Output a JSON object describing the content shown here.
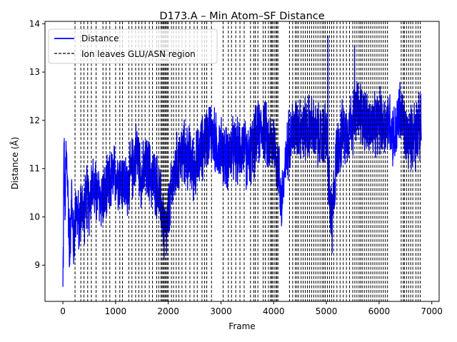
{
  "chart_data": {
    "type": "line",
    "title": "D173.A – Min Atom–SF Distance",
    "xlabel": "Frame",
    "ylabel": "Distance (Å)",
    "xlim": [
      -340,
      7140
    ],
    "ylim": [
      8.25,
      14.05
    ],
    "xticks": [
      0,
      1000,
      2000,
      3000,
      4000,
      5000,
      6000,
      7000
    ],
    "yticks": [
      9,
      10,
      11,
      12,
      13,
      14
    ],
    "grid": false,
    "legend_position": "upper left",
    "series": [
      {
        "name": "Distance",
        "color": "#0000ff",
        "style": "solid",
        "anchors": [
          [
            0,
            8.55
          ],
          [
            10,
            9.6
          ],
          [
            20,
            11.5
          ],
          [
            40,
            10.0
          ],
          [
            60,
            11.3
          ],
          [
            80,
            11.0
          ],
          [
            100,
            10.3
          ],
          [
            130,
            9.3
          ],
          [
            160,
            10.5
          ],
          [
            200,
            9.4
          ],
          [
            250,
            10.3
          ],
          [
            300,
            9.8
          ],
          [
            350,
            10.2
          ],
          [
            400,
            10.1
          ],
          [
            450,
            10.4
          ],
          [
            500,
            10.3
          ],
          [
            550,
            10.7
          ],
          [
            600,
            10.5
          ],
          [
            700,
            10.4
          ],
          [
            800,
            10.4
          ],
          [
            900,
            10.7
          ],
          [
            1000,
            10.9
          ],
          [
            1100,
            10.8
          ],
          [
            1200,
            10.6
          ],
          [
            1300,
            10.9
          ],
          [
            1400,
            11.4
          ],
          [
            1500,
            10.8
          ],
          [
            1600,
            11.0
          ],
          [
            1700,
            10.8
          ],
          [
            1800,
            10.6
          ],
          [
            1900,
            10.0
          ],
          [
            1950,
            9.6
          ],
          [
            2000,
            10.0
          ],
          [
            2100,
            10.8
          ],
          [
            2200,
            11.2
          ],
          [
            2300,
            11.3
          ],
          [
            2400,
            11.2
          ],
          [
            2500,
            11.0
          ],
          [
            2600,
            11.3
          ],
          [
            2700,
            11.6
          ],
          [
            2800,
            11.8
          ],
          [
            2900,
            11.5
          ],
          [
            3000,
            11.4
          ],
          [
            3100,
            11.2
          ],
          [
            3200,
            11.4
          ],
          [
            3300,
            11.3
          ],
          [
            3400,
            11.5
          ],
          [
            3500,
            11.2
          ],
          [
            3600,
            11.4
          ],
          [
            3700,
            11.7
          ],
          [
            3800,
            11.9
          ],
          [
            3900,
            11.5
          ],
          [
            4000,
            11.6
          ],
          [
            4100,
            10.9
          ],
          [
            4150,
            10.3
          ],
          [
            4200,
            10.8
          ],
          [
            4300,
            11.7
          ],
          [
            4400,
            11.8
          ],
          [
            4500,
            11.9
          ],
          [
            4600,
            11.8
          ],
          [
            4700,
            11.9
          ],
          [
            4800,
            11.7
          ],
          [
            4900,
            11.6
          ],
          [
            5000,
            11.8
          ],
          [
            5050,
            10.6
          ],
          [
            5100,
            9.8
          ],
          [
            5150,
            10.6
          ],
          [
            5200,
            11.4
          ],
          [
            5300,
            11.7
          ],
          [
            5400,
            11.8
          ],
          [
            5500,
            12.0
          ],
          [
            5600,
            12.2
          ],
          [
            5700,
            12.1
          ],
          [
            5800,
            11.9
          ],
          [
            5900,
            11.8
          ],
          [
            6000,
            12.0
          ],
          [
            6100,
            11.9
          ],
          [
            6200,
            12.0
          ],
          [
            6300,
            11.6
          ],
          [
            6400,
            12.2
          ],
          [
            6500,
            11.7
          ],
          [
            6600,
            11.6
          ],
          [
            6700,
            11.9
          ],
          [
            6800,
            11.8
          ]
        ],
        "noise_amplitude": 0.8,
        "extremes": [
          [
            5030,
            13.75
          ],
          [
            5535,
            13.55
          ],
          [
            5110,
            9.25
          ],
          [
            1920,
            9.15
          ],
          [
            0,
            8.55
          ],
          [
            6690,
            10.95
          ]
        ]
      },
      {
        "name": "Ion leaves GLU/ASN region",
        "color": "#000000",
        "style": "dashed",
        "x": [
          230,
          340,
          400,
          470,
          540,
          630,
          760,
          820,
          890,
          1000,
          1080,
          1130,
          1250,
          1310,
          1380,
          1440,
          1500,
          1560,
          1640,
          1700,
          1780,
          1820,
          1860,
          1880,
          1900,
          1920,
          1940,
          1960,
          1980,
          2000,
          2060,
          2100,
          2150,
          2200,
          2260,
          2330,
          2410,
          2490,
          2550,
          2640,
          2690,
          2730,
          2820,
          3040,
          3140,
          3200,
          3280,
          3360,
          3440,
          3560,
          3620,
          3650,
          3700,
          3800,
          3840,
          3900,
          3940,
          3960,
          3980,
          4010,
          4040,
          4060,
          4080,
          4300,
          4360,
          4410,
          4440,
          4470,
          4520,
          4560,
          4600,
          4640,
          4680,
          4720,
          4760,
          4800,
          4840,
          4880,
          4920,
          4950,
          4980,
          5020,
          5060,
          5100,
          5140,
          5200,
          5260,
          5320,
          5380,
          5440,
          5500,
          5540,
          5580,
          5620,
          5650,
          5680,
          5720,
          5760,
          5800,
          5840,
          5880,
          5920,
          5960,
          6000,
          6040,
          6080,
          6120,
          6160,
          6420,
          6460,
          6480,
          6520,
          6560,
          6600,
          6640,
          6700,
          6740,
          6780
        ]
      }
    ]
  }
}
